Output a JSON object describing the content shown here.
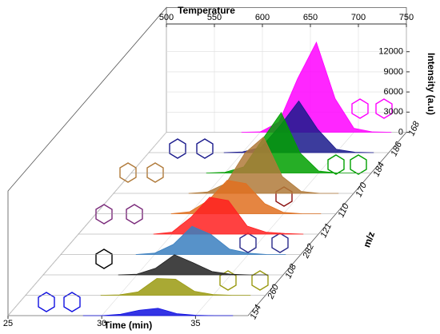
{
  "chart_data": {
    "type": "waterfall",
    "x_label": "Time (min)",
    "y_label": "Intensity (a.u)",
    "x2_label": "Temperature",
    "z_label": "m/z",
    "xlim": [
      25,
      37.8
    ],
    "xticks": [
      25,
      30,
      35
    ],
    "x2lim": [
      500,
      750
    ],
    "x2ticks": [
      500,
      550,
      600,
      650,
      700,
      750
    ],
    "ylim": [
      0,
      15000
    ],
    "yticks": [
      0,
      3000,
      6000,
      9000,
      12000
    ],
    "grid": true,
    "x": [
      29,
      30,
      31,
      32,
      33,
      34,
      35,
      36,
      37
    ],
    "series": [
      {
        "name": "168",
        "color": "#ff00ff",
        "values": [
          0,
          50,
          1500,
          8000,
          13400,
          5000,
          600,
          50,
          0
        ]
      },
      {
        "name": "186",
        "color": "#1a1a8c",
        "values": [
          0,
          100,
          800,
          4000,
          7700,
          3500,
          500,
          50,
          0
        ]
      },
      {
        "name": "184",
        "color": "#00a000",
        "values": [
          0,
          100,
          900,
          5000,
          9000,
          3000,
          300,
          0,
          0
        ]
      },
      {
        "name": "170",
        "color": "#b07a3a",
        "values": [
          0,
          200,
          1500,
          6000,
          8400,
          2500,
          300,
          0,
          0
        ]
      },
      {
        "name": "110",
        "color": "#e07020",
        "values": [
          0,
          300,
          2000,
          5000,
          4500,
          1500,
          200,
          0,
          0
        ]
      },
      {
        "name": "121",
        "color": "#ff2020",
        "values": [
          0,
          300,
          2500,
          5500,
          5000,
          1200,
          300,
          100,
          0
        ]
      },
      {
        "name": "282",
        "color": "#3a7fc0",
        "values": [
          0,
          200,
          1500,
          4200,
          3000,
          800,
          200,
          0,
          0
        ]
      },
      {
        "name": "108",
        "color": "#222222",
        "values": [
          0,
          100,
          1000,
          3000,
          1800,
          500,
          100,
          0,
          0
        ]
      },
      {
        "name": "260",
        "color": "#9a9a10",
        "values": [
          0,
          50,
          500,
          2500,
          2400,
          600,
          100,
          0,
          0
        ]
      },
      {
        "name": "154",
        "color": "#1010e0",
        "values": [
          0,
          0,
          200,
          800,
          1100,
          300,
          50,
          0,
          0
        ]
      }
    ]
  }
}
